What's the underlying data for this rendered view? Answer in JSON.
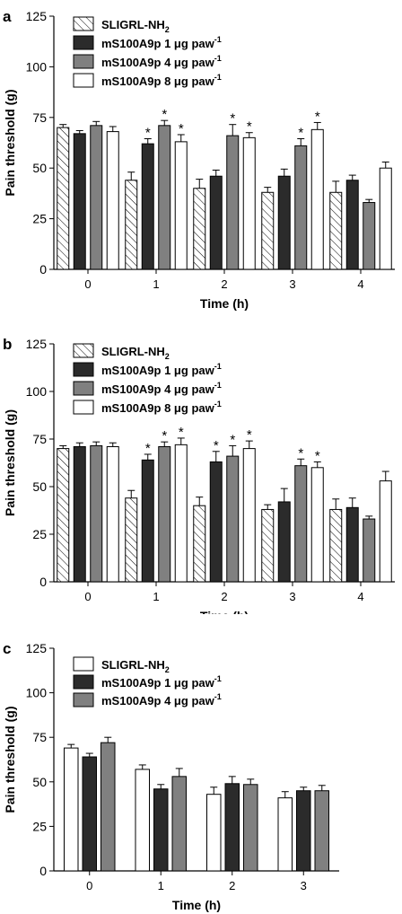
{
  "chart_data": [
    {
      "panel_letter": "a",
      "type": "bar",
      "xlabel": "Time (h)",
      "ylabel": "Pain threshold (g)",
      "ylim": [
        0,
        125
      ],
      "yticks": [
        "0",
        "25",
        "50",
        "75",
        "100",
        "125"
      ],
      "categories": [
        "0",
        "1",
        "2",
        "3",
        "4"
      ],
      "legend_placement": "top-left",
      "series": [
        {
          "name": "SLIGRL-NH",
          "subscript": "2",
          "superscript": "",
          "fill": "hatch",
          "values": [
            70,
            44,
            40,
            38,
            38
          ],
          "errors": [
            1.5,
            4,
            4.5,
            2.5,
            5.5
          ],
          "sig": [
            false,
            false,
            false,
            false,
            false
          ]
        },
        {
          "name": "mS100A9p 1 μg paw",
          "subscript": "",
          "superscript": "-1",
          "fill": "#2b2b2b",
          "values": [
            67,
            62,
            46,
            46,
            44
          ],
          "errors": [
            1.5,
            2.5,
            3,
            3.5,
            2.5
          ],
          "sig": [
            false,
            true,
            false,
            false,
            false
          ]
        },
        {
          "name": "mS100A9p 4 μg paw",
          "subscript": "",
          "superscript": "-1",
          "fill": "#808080",
          "values": [
            71,
            71,
            66,
            61,
            33
          ],
          "errors": [
            2,
            2.5,
            5.5,
            3.5,
            1.5
          ],
          "sig": [
            false,
            true,
            true,
            true,
            false
          ]
        },
        {
          "name": "mS100A9p 8 μg paw",
          "subscript": "",
          "superscript": "-1",
          "fill": "#ffffff",
          "values": [
            68,
            63,
            65,
            69,
            50
          ],
          "errors": [
            2.5,
            3.5,
            2.5,
            3.5,
            3
          ],
          "sig": [
            false,
            true,
            true,
            true,
            false
          ]
        }
      ]
    },
    {
      "panel_letter": "b",
      "type": "bar",
      "xlabel": "Time (h)",
      "ylabel": "Pain threshold (g)",
      "ylim": [
        0,
        125
      ],
      "yticks": [
        "0",
        "25",
        "50",
        "75",
        "100",
        "125"
      ],
      "categories": [
        "0",
        "1",
        "2",
        "3",
        "4"
      ],
      "legend_placement": "top-left",
      "series": [
        {
          "name": "SLIGRL-NH",
          "subscript": "2",
          "superscript": "",
          "fill": "hatch",
          "values": [
            70,
            44,
            40,
            38,
            38
          ],
          "errors": [
            1.5,
            4,
            4.5,
            2.5,
            5.5
          ],
          "sig": [
            false,
            false,
            false,
            false,
            false
          ]
        },
        {
          "name": "mS100A9p 1 μg paw",
          "subscript": "",
          "superscript": "-1",
          "fill": "#2b2b2b",
          "values": [
            71,
            64,
            63,
            42,
            39
          ],
          "errors": [
            2,
            3,
            5.5,
            7,
            5
          ],
          "sig": [
            false,
            true,
            true,
            false,
            false
          ]
        },
        {
          "name": "mS100A9p 4 μg paw",
          "subscript": "",
          "superscript": "-1",
          "fill": "#808080",
          "values": [
            71.5,
            71,
            66,
            61,
            33
          ],
          "errors": [
            2,
            2.5,
            5.5,
            3.5,
            1.5
          ],
          "sig": [
            false,
            true,
            true,
            true,
            false
          ]
        },
        {
          "name": "mS100A9p 8 μg paw",
          "subscript": "",
          "superscript": "-1",
          "fill": "#ffffff",
          "values": [
            71,
            72,
            70,
            60,
            53
          ],
          "errors": [
            2,
            3.5,
            4,
            3,
            5
          ],
          "sig": [
            false,
            true,
            true,
            true,
            false
          ]
        }
      ]
    },
    {
      "panel_letter": "c",
      "type": "bar",
      "xlabel": "Time (h)",
      "ylabel": "Pain threshold (g)",
      "ylim": [
        0,
        125
      ],
      "yticks": [
        "0",
        "25",
        "50",
        "75",
        "100",
        "125"
      ],
      "categories": [
        "0",
        "1",
        "2",
        "3"
      ],
      "legend_placement": "top-left",
      "series": [
        {
          "name": "SLIGRL-NH",
          "subscript": "2",
          "superscript": "",
          "fill": "#ffffff",
          "values": [
            69,
            57,
            43,
            41
          ],
          "errors": [
            2,
            2.5,
            4,
            3.5
          ],
          "sig": [
            false,
            false,
            false,
            false
          ]
        },
        {
          "name": "mS100A9p 1 μg paw",
          "subscript": "",
          "superscript": "-1",
          "fill": "#2b2b2b",
          "values": [
            64,
            46,
            49,
            45
          ],
          "errors": [
            2,
            2.5,
            4,
            2
          ],
          "sig": [
            false,
            false,
            false,
            false
          ]
        },
        {
          "name": "mS100A9p 4 μg paw",
          "subscript": "",
          "superscript": "-1",
          "fill": "#808080",
          "values": [
            72,
            53,
            48.5,
            45
          ],
          "errors": [
            3,
            4.5,
            3,
            3
          ],
          "sig": [
            false,
            false,
            false,
            false
          ]
        }
      ]
    }
  ]
}
